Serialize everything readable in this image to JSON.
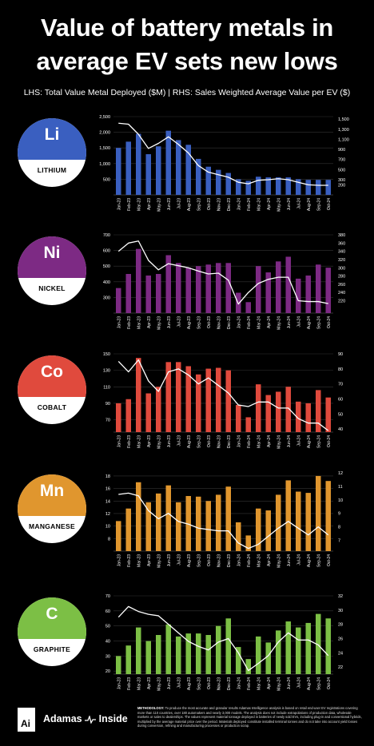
{
  "title_line1": "Value of battery metals in",
  "title_line2": "average EV sets new lows",
  "subtitle": "LHS: Total Value Metal Deployed ($M)  |  RHS: Sales Weighted Average Value per EV ($)",
  "months": [
    "Jan-23",
    "Feb-23",
    "Mar-23",
    "Apr-23",
    "May-23",
    "Jun-23",
    "Jul-23",
    "Aug-23",
    "Sep-23",
    "Oct-23",
    "Nov-23",
    "Dec-23",
    "Jan-24",
    "Feb-24",
    "Mar-24",
    "Apr-24",
    "May-24",
    "Jun-24",
    "Jul-24",
    "Aug-24",
    "Sep-24",
    "Oct-24"
  ],
  "chart_data": [
    {
      "type": "bar",
      "symbol": "Li",
      "name": "LITHIUM",
      "color": "#3a5fc0",
      "left_ticks": [
        "500",
        "1,000",
        "1,500",
        "2,000",
        "2,500"
      ],
      "ylim_left": [
        0,
        2500
      ],
      "right_ticks": [
        "200",
        "300",
        "500",
        "700",
        "900",
        "1,100",
        "1,300",
        "1,500"
      ],
      "ylim_right": [
        0,
        1550
      ],
      "bars": [
        1500,
        1700,
        1950,
        1300,
        1550,
        2050,
        1750,
        1600,
        1150,
        900,
        800,
        700,
        500,
        450,
        580,
        560,
        560,
        560,
        500,
        480,
        480,
        480
      ],
      "line": [
        1420,
        1400,
        1200,
        920,
        1020,
        1150,
        1000,
        830,
        580,
        450,
        400,
        350,
        250,
        220,
        290,
        300,
        320,
        300,
        250,
        200,
        190,
        190
      ]
    },
    {
      "type": "bar",
      "symbol": "Ni",
      "name": "NICKEL",
      "color": "#7d2a84",
      "left_ticks": [
        "300",
        "400",
        "500",
        "600",
        "700"
      ],
      "ylim_left": [
        200,
        700
      ],
      "right_ticks": [
        "220",
        "240",
        "260",
        "280",
        "300",
        "320",
        "340",
        "360",
        "380"
      ],
      "ylim_right": [
        190,
        380
      ],
      "bars": [
        360,
        450,
        610,
        440,
        450,
        570,
        520,
        490,
        500,
        510,
        520,
        520,
        330,
        270,
        500,
        460,
        530,
        560,
        420,
        440,
        510,
        490
      ],
      "line": [
        340,
        360,
        365,
        318,
        295,
        310,
        305,
        300,
        292,
        285,
        287,
        270,
        212,
        240,
        262,
        272,
        277,
        277,
        220,
        218,
        218,
        213
      ]
    },
    {
      "type": "bar",
      "symbol": "Co",
      "name": "COBALT",
      "color": "#e04a3d",
      "left_ticks": [
        "70",
        "90",
        "110",
        "130",
        "150"
      ],
      "ylim_left": [
        55,
        150
      ],
      "right_ticks": [
        "40",
        "50",
        "60",
        "70",
        "80",
        "90"
      ],
      "ylim_right": [
        38,
        90
      ],
      "bars": [
        90,
        95,
        145,
        102,
        110,
        140,
        140,
        135,
        125,
        132,
        133,
        130,
        88,
        73,
        113,
        100,
        104,
        110,
        92,
        90,
        106,
        97
      ],
      "line": [
        85,
        78,
        86,
        72,
        65,
        78,
        80,
        76,
        70,
        74,
        69,
        64,
        56,
        55,
        58,
        58,
        54,
        54,
        47,
        44,
        44,
        39
      ]
    },
    {
      "type": "bar",
      "symbol": "Mn",
      "name": "MANGANESE",
      "color": "#e0962e",
      "left_ticks": [
        "8",
        "10",
        "12",
        "14",
        "16",
        "18"
      ],
      "ylim_left": [
        6,
        18.5
      ],
      "right_ticks": [
        "7",
        "8",
        "9",
        "10",
        "11",
        "12"
      ],
      "ylim_right": [
        6.2,
        12
      ],
      "bars": [
        10.8,
        12.8,
        17.0,
        13.8,
        15.2,
        16.5,
        13.8,
        14.8,
        14.7,
        14.0,
        15.0,
        16.3,
        10.6,
        8.5,
        12.8,
        12.5,
        15.0,
        17.3,
        15.5,
        15.3,
        18.0,
        17.2
      ],
      "line": [
        10.4,
        10.5,
        10.3,
        9.2,
        8.6,
        9.0,
        8.4,
        8.2,
        7.9,
        7.8,
        7.7,
        7.7,
        6.8,
        6.4,
        6.7,
        7.3,
        7.9,
        8.4,
        7.9,
        7.4,
        8.0,
        7.4
      ]
    },
    {
      "type": "bar",
      "symbol": "C",
      "name": "GRAPHITE",
      "color": "#7cbf45",
      "left_ticks": [
        "20",
        "30",
        "40",
        "50",
        "60",
        "70"
      ],
      "ylim_left": [
        18,
        70
      ],
      "right_ticks": [
        "22",
        "24",
        "26",
        "28",
        "30",
        "32"
      ],
      "ylim_right": [
        21,
        32
      ],
      "bars": [
        30,
        37,
        49,
        40,
        44,
        51,
        43,
        45,
        45,
        44,
        50,
        55,
        36,
        28,
        43,
        39,
        47,
        53,
        49,
        52,
        58,
        55
      ],
      "line": [
        29.0,
        30.5,
        29.8,
        29.4,
        29.2,
        28.0,
        26.8,
        25.6,
        24.9,
        24.4,
        25.5,
        26.0,
        24.0,
        21.5,
        22.5,
        23.6,
        25.5,
        26.8,
        25.8,
        25.8,
        25.1,
        23.6
      ]
    }
  ],
  "footer": {
    "logo_letters": "Ai",
    "brand_left": "Adamas",
    "brand_right": "Inside",
    "methodology_label": "METHODOLOGY:",
    "methodology_text": "To produce the most accurate and granular results Adamas Intelligence analysis is based on retail end-user EV registrations covering more than 110 countries, over 180 automakers and nearly 3,000 models. The analysis does not include extrapolations of production data, wholesale markets or sales to dealerships. The values represent material tonnage deployed in batteries of newly sold EVs, including plug-in and conventional hybrids, multiplied by the average material price over the period. Materials deployed constitute installed terminal tonnes and do not take into account yield losses during conversion, refining and manufacturing processes or production scrap."
  }
}
